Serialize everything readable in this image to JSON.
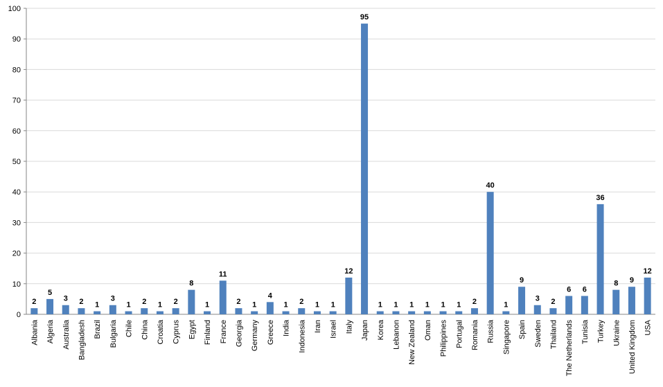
{
  "chart_data": {
    "type": "bar",
    "categories": [
      "Albania",
      "Algeria",
      "Australia",
      "Bangladesh",
      "Brazil",
      "Bulgaria",
      "Chile",
      "China",
      "Croatia",
      "Cyprus",
      "Egypt",
      "Finland",
      "France",
      "Georgia",
      "Germany",
      "Greece",
      "India",
      "Indonesia",
      "Iran",
      "Israel",
      "Italy",
      "Japan",
      "Korea",
      "Lebanon",
      "New Zealand",
      "Oman",
      "Philippines",
      "Portugal",
      "Romania",
      "Russia",
      "Singapore",
      "Spain",
      "Sweden",
      "Thailand",
      "The Netherlands",
      "Tunisia",
      "Turkey",
      "Ukraine",
      "United Kingdom",
      "USA"
    ],
    "values": [
      2,
      5,
      3,
      2,
      1,
      3,
      1,
      2,
      1,
      2,
      8,
      1,
      11,
      2,
      1,
      4,
      1,
      2,
      1,
      1,
      12,
      95,
      1,
      1,
      1,
      1,
      1,
      1,
      2,
      40,
      1,
      9,
      3,
      2,
      6,
      6,
      36,
      8,
      9,
      12
    ],
    "color": "#4f81bd",
    "ylim": [
      0,
      100
    ],
    "yticks": [
      0,
      10,
      20,
      30,
      40,
      50,
      60,
      70,
      80,
      90,
      100
    ],
    "grid": true
  }
}
